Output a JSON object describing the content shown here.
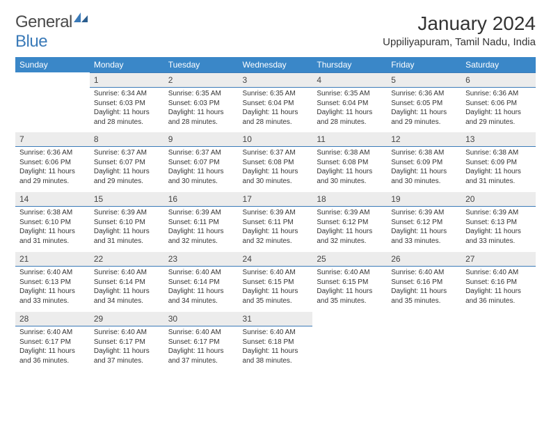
{
  "logo": {
    "text1": "General",
    "text2": "Blue"
  },
  "title": "January 2024",
  "location": "Uppiliyapuram, Tamil Nadu, India",
  "colors": {
    "header_bg": "#3a87c8",
    "header_fg": "#ffffff",
    "daynum_bg": "#ececec",
    "rule": "#3a7ab8",
    "text": "#333333",
    "logo_gray": "#4a4a4a",
    "logo_blue": "#3a7ab8"
  },
  "weekdays": [
    "Sunday",
    "Monday",
    "Tuesday",
    "Wednesday",
    "Thursday",
    "Friday",
    "Saturday"
  ],
  "weeks": [
    [
      null,
      {
        "n": "1",
        "sr": "Sunrise: 6:34 AM",
        "ss": "Sunset: 6:03 PM",
        "d1": "Daylight: 11 hours",
        "d2": "and 28 minutes."
      },
      {
        "n": "2",
        "sr": "Sunrise: 6:35 AM",
        "ss": "Sunset: 6:03 PM",
        "d1": "Daylight: 11 hours",
        "d2": "and 28 minutes."
      },
      {
        "n": "3",
        "sr": "Sunrise: 6:35 AM",
        "ss": "Sunset: 6:04 PM",
        "d1": "Daylight: 11 hours",
        "d2": "and 28 minutes."
      },
      {
        "n": "4",
        "sr": "Sunrise: 6:35 AM",
        "ss": "Sunset: 6:04 PM",
        "d1": "Daylight: 11 hours",
        "d2": "and 28 minutes."
      },
      {
        "n": "5",
        "sr": "Sunrise: 6:36 AM",
        "ss": "Sunset: 6:05 PM",
        "d1": "Daylight: 11 hours",
        "d2": "and 29 minutes."
      },
      {
        "n": "6",
        "sr": "Sunrise: 6:36 AM",
        "ss": "Sunset: 6:06 PM",
        "d1": "Daylight: 11 hours",
        "d2": "and 29 minutes."
      }
    ],
    [
      {
        "n": "7",
        "sr": "Sunrise: 6:36 AM",
        "ss": "Sunset: 6:06 PM",
        "d1": "Daylight: 11 hours",
        "d2": "and 29 minutes."
      },
      {
        "n": "8",
        "sr": "Sunrise: 6:37 AM",
        "ss": "Sunset: 6:07 PM",
        "d1": "Daylight: 11 hours",
        "d2": "and 29 minutes."
      },
      {
        "n": "9",
        "sr": "Sunrise: 6:37 AM",
        "ss": "Sunset: 6:07 PM",
        "d1": "Daylight: 11 hours",
        "d2": "and 30 minutes."
      },
      {
        "n": "10",
        "sr": "Sunrise: 6:37 AM",
        "ss": "Sunset: 6:08 PM",
        "d1": "Daylight: 11 hours",
        "d2": "and 30 minutes."
      },
      {
        "n": "11",
        "sr": "Sunrise: 6:38 AM",
        "ss": "Sunset: 6:08 PM",
        "d1": "Daylight: 11 hours",
        "d2": "and 30 minutes."
      },
      {
        "n": "12",
        "sr": "Sunrise: 6:38 AM",
        "ss": "Sunset: 6:09 PM",
        "d1": "Daylight: 11 hours",
        "d2": "and 30 minutes."
      },
      {
        "n": "13",
        "sr": "Sunrise: 6:38 AM",
        "ss": "Sunset: 6:09 PM",
        "d1": "Daylight: 11 hours",
        "d2": "and 31 minutes."
      }
    ],
    [
      {
        "n": "14",
        "sr": "Sunrise: 6:38 AM",
        "ss": "Sunset: 6:10 PM",
        "d1": "Daylight: 11 hours",
        "d2": "and 31 minutes."
      },
      {
        "n": "15",
        "sr": "Sunrise: 6:39 AM",
        "ss": "Sunset: 6:10 PM",
        "d1": "Daylight: 11 hours",
        "d2": "and 31 minutes."
      },
      {
        "n": "16",
        "sr": "Sunrise: 6:39 AM",
        "ss": "Sunset: 6:11 PM",
        "d1": "Daylight: 11 hours",
        "d2": "and 32 minutes."
      },
      {
        "n": "17",
        "sr": "Sunrise: 6:39 AM",
        "ss": "Sunset: 6:11 PM",
        "d1": "Daylight: 11 hours",
        "d2": "and 32 minutes."
      },
      {
        "n": "18",
        "sr": "Sunrise: 6:39 AM",
        "ss": "Sunset: 6:12 PM",
        "d1": "Daylight: 11 hours",
        "d2": "and 32 minutes."
      },
      {
        "n": "19",
        "sr": "Sunrise: 6:39 AM",
        "ss": "Sunset: 6:12 PM",
        "d1": "Daylight: 11 hours",
        "d2": "and 33 minutes."
      },
      {
        "n": "20",
        "sr": "Sunrise: 6:39 AM",
        "ss": "Sunset: 6:13 PM",
        "d1": "Daylight: 11 hours",
        "d2": "and 33 minutes."
      }
    ],
    [
      {
        "n": "21",
        "sr": "Sunrise: 6:40 AM",
        "ss": "Sunset: 6:13 PM",
        "d1": "Daylight: 11 hours",
        "d2": "and 33 minutes."
      },
      {
        "n": "22",
        "sr": "Sunrise: 6:40 AM",
        "ss": "Sunset: 6:14 PM",
        "d1": "Daylight: 11 hours",
        "d2": "and 34 minutes."
      },
      {
        "n": "23",
        "sr": "Sunrise: 6:40 AM",
        "ss": "Sunset: 6:14 PM",
        "d1": "Daylight: 11 hours",
        "d2": "and 34 minutes."
      },
      {
        "n": "24",
        "sr": "Sunrise: 6:40 AM",
        "ss": "Sunset: 6:15 PM",
        "d1": "Daylight: 11 hours",
        "d2": "and 35 minutes."
      },
      {
        "n": "25",
        "sr": "Sunrise: 6:40 AM",
        "ss": "Sunset: 6:15 PM",
        "d1": "Daylight: 11 hours",
        "d2": "and 35 minutes."
      },
      {
        "n": "26",
        "sr": "Sunrise: 6:40 AM",
        "ss": "Sunset: 6:16 PM",
        "d1": "Daylight: 11 hours",
        "d2": "and 35 minutes."
      },
      {
        "n": "27",
        "sr": "Sunrise: 6:40 AM",
        "ss": "Sunset: 6:16 PM",
        "d1": "Daylight: 11 hours",
        "d2": "and 36 minutes."
      }
    ],
    [
      {
        "n": "28",
        "sr": "Sunrise: 6:40 AM",
        "ss": "Sunset: 6:17 PM",
        "d1": "Daylight: 11 hours",
        "d2": "and 36 minutes."
      },
      {
        "n": "29",
        "sr": "Sunrise: 6:40 AM",
        "ss": "Sunset: 6:17 PM",
        "d1": "Daylight: 11 hours",
        "d2": "and 37 minutes."
      },
      {
        "n": "30",
        "sr": "Sunrise: 6:40 AM",
        "ss": "Sunset: 6:17 PM",
        "d1": "Daylight: 11 hours",
        "d2": "and 37 minutes."
      },
      {
        "n": "31",
        "sr": "Sunrise: 6:40 AM",
        "ss": "Sunset: 6:18 PM",
        "d1": "Daylight: 11 hours",
        "d2": "and 38 minutes."
      },
      null,
      null,
      null
    ]
  ]
}
